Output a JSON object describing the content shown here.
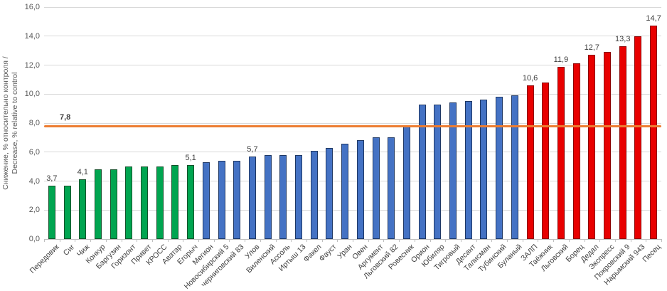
{
  "chart_data": {
    "type": "bar",
    "title": "",
    "ylabel_ru": "Снижение, % относительно контроля /",
    "ylabel_en": "Decrease, % relative to control",
    "ylim": [
      0,
      16
    ],
    "ytick_step": 2,
    "ytick_labels": [
      "0,0",
      "2,0",
      "4,0",
      "6,0",
      "8,0",
      "10,0",
      "12,0",
      "14,0",
      "16,0"
    ],
    "grid": true,
    "legend": "none",
    "reference_line": {
      "value": 7.8,
      "label": "7,8"
    },
    "colors": {
      "green_fill": "#00A550",
      "green_border": "#14522B",
      "blue_fill": "#4472C4",
      "blue_border": "#1F3864",
      "red_fill": "#E80000",
      "red_border": "#8B0000",
      "reference_line": "#ED7D31",
      "gridline": "#D9D9D9",
      "axis_line": "#BFBFBF",
      "tick_text": "#595959",
      "label_text": "#404040"
    },
    "bars": [
      {
        "name": "Передовик",
        "value": 3.7,
        "group": "green",
        "data_label": "3,7"
      },
      {
        "name": "Сиг",
        "value": 3.7,
        "group": "green",
        "data_label": null
      },
      {
        "name": "Чиж",
        "value": 4.1,
        "group": "green",
        "data_label": "4,1"
      },
      {
        "name": "Конкур",
        "value": 4.8,
        "group": "green",
        "data_label": null
      },
      {
        "name": "Баргузин",
        "value": 4.8,
        "group": "green",
        "data_label": null
      },
      {
        "name": "Горизонт",
        "value": 5.0,
        "group": "green",
        "data_label": null
      },
      {
        "name": "Привет",
        "value": 5.0,
        "group": "green",
        "data_label": null
      },
      {
        "name": "КРОСС",
        "value": 5.0,
        "group": "green",
        "data_label": null
      },
      {
        "name": "Аватар",
        "value": 5.1,
        "group": "green",
        "data_label": null
      },
      {
        "name": "Егорыч",
        "value": 5.1,
        "group": "green",
        "data_label": "5,1"
      },
      {
        "name": "Мегион",
        "value": 5.3,
        "group": "blue",
        "data_label": null
      },
      {
        "name": "Новосибирский 5",
        "value": 5.4,
        "group": "blue",
        "data_label": null
      },
      {
        "name": "черниговский 83",
        "value": 5.4,
        "group": "blue",
        "data_label": null
      },
      {
        "name": "Улов",
        "value": 5.7,
        "group": "blue",
        "data_label": "5,7"
      },
      {
        "name": "Виленский",
        "value": 5.8,
        "group": "blue",
        "data_label": null
      },
      {
        "name": "Ассоль",
        "value": 5.8,
        "group": "blue",
        "data_label": null
      },
      {
        "name": "Иртыш 13",
        "value": 5.8,
        "group": "blue",
        "data_label": null
      },
      {
        "name": "Факел",
        "value": 6.1,
        "group": "blue",
        "data_label": null
      },
      {
        "name": "Фауст",
        "value": 6.3,
        "group": "blue",
        "data_label": null
      },
      {
        "name": "Уран",
        "value": 6.6,
        "group": "blue",
        "data_label": null
      },
      {
        "name": "Овен",
        "value": 6.8,
        "group": "blue",
        "data_label": null
      },
      {
        "name": "Аргумент",
        "value": 7.0,
        "group": "blue",
        "data_label": null
      },
      {
        "name": "Льговский 82",
        "value": 7.0,
        "group": "blue",
        "data_label": null
      },
      {
        "name": "Ровесник",
        "value": 7.8,
        "group": "blue",
        "data_label": null
      },
      {
        "name": "Орион",
        "value": 9.3,
        "group": "blue",
        "data_label": null
      },
      {
        "name": "Юбиляр",
        "value": 9.3,
        "group": "blue",
        "data_label": null
      },
      {
        "name": "Тигровый",
        "value": 9.4,
        "group": "blue",
        "data_label": null
      },
      {
        "name": "Десант",
        "value": 9.5,
        "group": "blue",
        "data_label": null
      },
      {
        "name": "Талисман",
        "value": 9.6,
        "group": "blue",
        "data_label": null
      },
      {
        "name": "Тубинский",
        "value": 9.8,
        "group": "blue",
        "data_label": null
      },
      {
        "name": "Буланый",
        "value": 9.9,
        "group": "blue",
        "data_label": null
      },
      {
        "name": "ЗАЛП",
        "value": 10.6,
        "group": "red",
        "data_label": "10,6"
      },
      {
        "name": "Таёжник",
        "value": 10.8,
        "group": "red",
        "data_label": null
      },
      {
        "name": "Льговский",
        "value": 11.9,
        "group": "red",
        "data_label": "11,9"
      },
      {
        "name": "Борец",
        "value": 12.1,
        "group": "red",
        "data_label": null
      },
      {
        "name": "Дедал",
        "value": 12.7,
        "group": "red",
        "data_label": "12,7"
      },
      {
        "name": "Экспресс",
        "value": 12.9,
        "group": "red",
        "data_label": null
      },
      {
        "name": "Покровский 9",
        "value": 13.3,
        "group": "red",
        "data_label": "13,3"
      },
      {
        "name": "Нарымский 943",
        "value": 14.0,
        "group": "red",
        "data_label": null
      },
      {
        "name": "Песец",
        "value": 14.7,
        "group": "red",
        "data_label": "14,7"
      }
    ]
  }
}
